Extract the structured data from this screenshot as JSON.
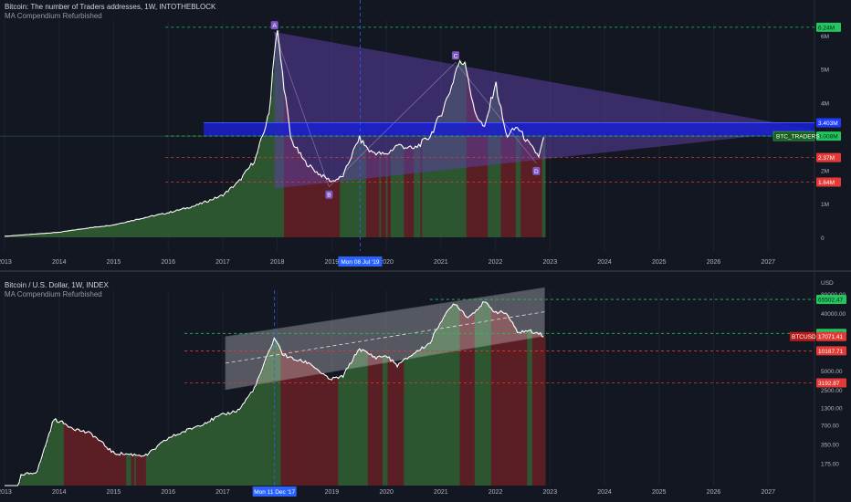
{
  "top_panel": {
    "title": "Bitcoin: The number of Traders addresses, 1W, INTOTHEBLOCK",
    "indicator": "MA Compendium Refurbished"
  },
  "bottom_panel": {
    "title": "Bitcoin / U.S. Dollar, 1W, INDEX",
    "indicator": "MA Compendium Refurbished"
  },
  "colors": {
    "background": "#131722",
    "grid": "#1e222d",
    "up_bar": "#2e5a31",
    "down_bar": "#5e1f26",
    "line": "#ffffff",
    "triangle": "#5b3fa0",
    "blue_band": "#1a1fcf",
    "green_label": "#22c55e",
    "red_label": "#e53935",
    "crosshair": "#2962ff",
    "pattern_label": "#7e57c2"
  },
  "chart_data": [
    {
      "type": "area",
      "series_label": "BTC_TRADERS",
      "x_ticks": [
        "2013",
        "2014",
        "2015",
        "2016",
        "2017",
        "2018",
        "2019",
        "2020",
        "2021",
        "2022",
        "2023",
        "2024",
        "2025",
        "2026",
        "2027"
      ],
      "y_ticks": [
        "0",
        "1M",
        "2M",
        "3M",
        "4M",
        "5M",
        "6M"
      ],
      "ylim": [
        0,
        6400000
      ],
      "series": [
        {
          "x": [
            2013.0,
            2013.5,
            2014.0,
            2014.5,
            2015.0,
            2015.5,
            2016.0,
            2016.5,
            2017.0,
            2017.3,
            2017.6,
            2017.85,
            2017.95,
            2018.0,
            2018.1,
            2018.25,
            2018.5,
            2018.75,
            2019.0,
            2019.2,
            2019.5,
            2019.7,
            2020.0,
            2020.2,
            2020.5,
            2020.8,
            2021.0,
            2021.2,
            2021.3,
            2021.45,
            2021.6,
            2021.8,
            2021.9,
            2022.0,
            2022.2,
            2022.4,
            2022.6,
            2022.8,
            2022.9
          ],
          "y": [
            30000,
            90000,
            150000,
            270000,
            370000,
            560000,
            730000,
            940000,
            1250000,
            1660000,
            2320000,
            3650000,
            5650000,
            6100000,
            4800000,
            2900000,
            2250000,
            1900000,
            1660000,
            1800000,
            2950000,
            2550000,
            2450000,
            2750000,
            2620000,
            3000000,
            3650000,
            4500000,
            5100000,
            5250000,
            3800000,
            3220000,
            3900000,
            4600000,
            3000000,
            3280000,
            2800000,
            2400000,
            3050000
          ]
        }
      ],
      "levels": [
        {
          "label": "6.24M",
          "value": 6240000,
          "color": "green"
        },
        {
          "label": "3.403M",
          "value": 3403000,
          "color": "blue"
        },
        {
          "label": "3.008M",
          "value": 3008000,
          "color": "green"
        },
        {
          "label": "2.37M",
          "value": 2370000,
          "color": "red"
        },
        {
          "label": "1.64M",
          "value": 1640000,
          "color": "red"
        }
      ],
      "pattern_points": [
        {
          "label": "A",
          "x": 2017.95,
          "y": 6100000
        },
        {
          "label": "B",
          "x": 2018.95,
          "y": 1500000
        },
        {
          "label": "C",
          "x": 2021.27,
          "y": 5200000
        },
        {
          "label": "D",
          "x": 2022.75,
          "y": 2200000
        }
      ],
      "crosshair": {
        "x_label": "Mon 08 Jul '19",
        "x": 2019.52
      }
    },
    {
      "type": "line",
      "series_label": "BTCUSD",
      "x_ticks": [
        "2013",
        "2014",
        "2015",
        "2016",
        "2017",
        "2018",
        "2019",
        "2020",
        "2021",
        "2022",
        "2023",
        "2024",
        "2025",
        "2026",
        "2027"
      ],
      "y_ticks": [
        "USD",
        "80000.00",
        "40000.00",
        "20000.00",
        "10000.00",
        "5000.00",
        "2500.00",
        "1300.00",
        "700.00",
        "350.00",
        "175.00"
      ],
      "scale": "log",
      "ylim": [
        100,
        90000
      ],
      "series": [
        {
          "x": [
            2013.0,
            2013.3,
            2013.6,
            2013.9,
            2014.0,
            2014.3,
            2014.6,
            2015.0,
            2015.3,
            2015.6,
            2016.0,
            2016.5,
            2017.0,
            2017.3,
            2017.6,
            2017.85,
            2017.95,
            2018.1,
            2018.3,
            2018.6,
            2018.95,
            2019.2,
            2019.5,
            2019.8,
            2020.0,
            2020.2,
            2020.5,
            2020.8,
            2021.0,
            2021.25,
            2021.5,
            2021.8,
            2021.9,
            2022.0,
            2022.2,
            2022.4,
            2022.6,
            2022.8,
            2022.9
          ],
          "y": [
            13,
            110,
            130,
            850,
            800,
            600,
            500,
            250,
            240,
            230,
            430,
            650,
            1000,
            1200,
            2800,
            10000,
            16500,
            9000,
            7500,
            6500,
            3600,
            4000,
            11000,
            8000,
            8500,
            6000,
            9200,
            13500,
            30000,
            58000,
            34000,
            60000,
            48000,
            42000,
            40000,
            20000,
            21000,
            19500,
            16800
          ]
        }
      ],
      "levels": [
        {
          "label": "65502.47",
          "value": 65502.47,
          "color": "green"
        },
        {
          "label": "19128.27",
          "value": 19128.27,
          "color": "green"
        },
        {
          "label": "17071.41",
          "value": 17071.41,
          "color": "red"
        },
        {
          "label": "10167.71",
          "value": 10167.71,
          "color": "red"
        },
        {
          "label": "3192.87",
          "value": 3192.87,
          "color": "red"
        }
      ],
      "crosshair": {
        "x_label": "Mon 11 Dec '17",
        "x": 2017.95
      }
    }
  ]
}
